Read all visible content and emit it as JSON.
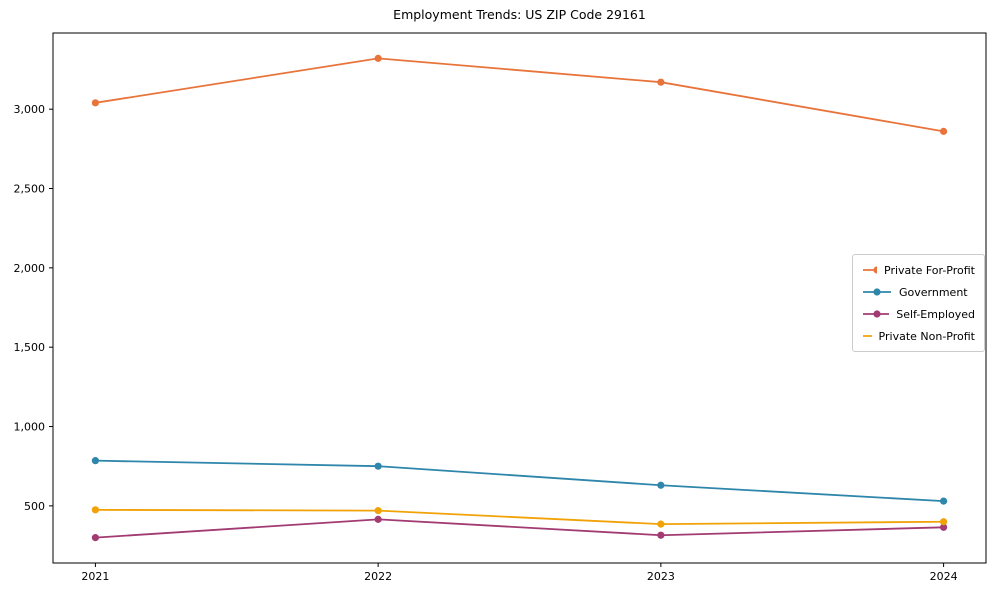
{
  "chart_data": {
    "type": "line",
    "title": "Employment Trends: US ZIP Code 29161",
    "xlabel": "",
    "ylabel": "",
    "categories": [
      "2021",
      "2022",
      "2023",
      "2024"
    ],
    "series": [
      {
        "name": "Private For-Profit",
        "color": "#e8743b",
        "values": [
          3040,
          3320,
          3170,
          2860
        ]
      },
      {
        "name": "Government",
        "color": "#2e86ab",
        "values": [
          785,
          750,
          630,
          530
        ]
      },
      {
        "name": "Self-Employed",
        "color": "#a23b72",
        "values": [
          300,
          415,
          315,
          365
        ]
      },
      {
        "name": "Private Non-Profit",
        "color": "#f1a208",
        "values": [
          475,
          470,
          385,
          400
        ]
      }
    ],
    "ylim": [
      140,
      3480
    ],
    "yticks": [
      500,
      1000,
      1500,
      2000,
      2500,
      3000
    ],
    "ytick_labels": [
      "500",
      "1,000",
      "1,500",
      "2,000",
      "2,500",
      "3,000"
    ],
    "grid": false,
    "legend_position": "center-right",
    "axes_color": "#000000"
  }
}
